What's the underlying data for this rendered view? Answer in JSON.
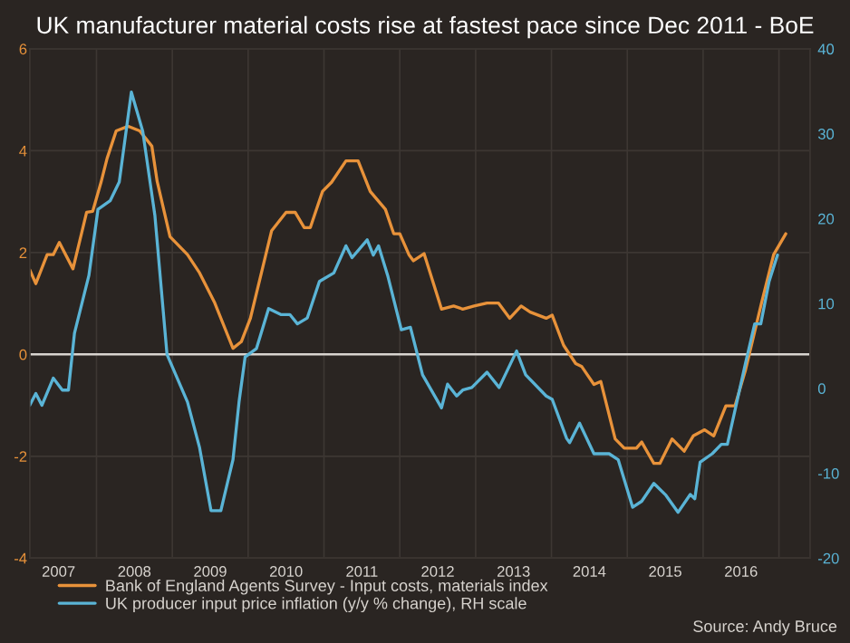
{
  "chart_data": {
    "type": "line",
    "title": "UK manufacturer material costs rise at fastest pace since Dec 2011 - BoE",
    "series": [
      {
        "name": "Bank of England Agents Survey - Input costs, materials index",
        "color": "#e8923a",
        "x": [
          2007.12,
          2007.2,
          2007.35,
          2007.43,
          2007.51,
          2007.69,
          2007.87,
          2007.95,
          2008.06,
          2008.14,
          2008.26,
          2008.42,
          2008.57,
          2008.73,
          2008.8,
          2008.97,
          2009.2,
          2009.36,
          2009.56,
          2009.8,
          2009.91,
          2010.03,
          2010.31,
          2010.5,
          2010.62,
          2010.74,
          2010.82,
          2010.98,
          2011.1,
          2011.29,
          2011.45,
          2011.61,
          2011.81,
          2011.92,
          2012.0,
          2012.12,
          2012.18,
          2012.32,
          2012.55,
          2012.71,
          2012.83,
          2012.98,
          2013.15,
          2013.3,
          2013.45,
          2013.6,
          2013.72,
          2013.93,
          2014.01,
          2014.16,
          2014.32,
          2014.4,
          2014.56,
          2014.65,
          2014.84,
          2014.96,
          2015.12,
          2015.19,
          2015.35,
          2015.43,
          2015.59,
          2015.75,
          2015.87,
          2016.02,
          2016.14,
          2016.3,
          2016.42,
          2016.56,
          2016.77,
          2016.93,
          2017.09
        ],
        "values": [
          1.66,
          1.39,
          1.96,
          1.96,
          2.2,
          1.68,
          2.79,
          2.81,
          3.38,
          3.85,
          4.39,
          4.48,
          4.39,
          4.09,
          3.4,
          2.31,
          1.96,
          1.6,
          1.01,
          0.12,
          0.25,
          0.71,
          2.43,
          2.79,
          2.79,
          2.49,
          2.49,
          3.2,
          3.38,
          3.8,
          3.8,
          3.2,
          2.85,
          2.37,
          2.37,
          1.96,
          1.84,
          1.98,
          0.89,
          0.95,
          0.89,
          0.95,
          1.01,
          1.01,
          0.71,
          0.95,
          0.83,
          0.71,
          0.77,
          0.18,
          -0.18,
          -0.24,
          -0.59,
          -0.53,
          -1.66,
          -1.84,
          -1.84,
          -1.72,
          -2.14,
          -2.14,
          -1.66,
          -1.9,
          -1.6,
          -1.48,
          -1.6,
          -1.01,
          -1.01,
          -0.3,
          1.01,
          1.96,
          2.37
        ]
      },
      {
        "name": "UK producer input price inflation (y/y % change), RH scale",
        "color": "#5ab4d6",
        "axis": "y2",
        "x": [
          2007.12,
          2007.2,
          2007.28,
          2007.43,
          2007.55,
          2007.63,
          2007.71,
          2007.9,
          2008.02,
          2008.18,
          2008.3,
          2008.46,
          2008.61,
          2008.77,
          2008.93,
          2009.2,
          2009.36,
          2009.51,
          2009.64,
          2009.8,
          2009.88,
          2009.96,
          2010.11,
          2010.27,
          2010.43,
          2010.55,
          2010.65,
          2010.78,
          2010.94,
          2011.13,
          2011.29,
          2011.37,
          2011.57,
          2011.65,
          2011.72,
          2011.84,
          2012.02,
          2012.14,
          2012.3,
          2012.55,
          2012.63,
          2012.75,
          2012.83,
          2012.95,
          2013.15,
          2013.31,
          2013.54,
          2013.66,
          2013.93,
          2014.01,
          2014.2,
          2014.24,
          2014.37,
          2014.56,
          2014.76,
          2014.88,
          2015.07,
          2015.19,
          2015.35,
          2015.51,
          2015.67,
          2015.83,
          2015.89,
          2015.96,
          2016.12,
          2016.24,
          2016.32,
          2016.56,
          2016.68,
          2016.76,
          2016.87,
          2016.98
        ],
        "values": [
          -2,
          -0.6,
          -2,
          1.2,
          -0.2,
          -0.2,
          6.5,
          13.3,
          21.1,
          22.1,
          24.3,
          34.9,
          30.3,
          20.4,
          4.0,
          -1.6,
          -7,
          -14.4,
          -14.4,
          -8.4,
          -1.6,
          3.7,
          4.7,
          9.4,
          8.7,
          8.7,
          7.6,
          8.3,
          12.6,
          13.6,
          16.8,
          15.4,
          17.5,
          15.7,
          16.8,
          13.3,
          6.9,
          7.2,
          1.6,
          -2.3,
          0.5,
          -0.9,
          -0.2,
          0.1,
          1.9,
          0.1,
          4.4,
          1.6,
          -0.9,
          -1.3,
          -5.9,
          -6.4,
          -4.1,
          -7.7,
          -7.7,
          -8.4,
          -14.0,
          -13.3,
          -11.2,
          -12.6,
          -14.6,
          -12.5,
          -13.0,
          -8.7,
          -7.7,
          -6.6,
          -6.6,
          3.0,
          7.6,
          7.6,
          12.6,
          15.7
        ]
      }
    ],
    "xlim": [
      2007.12,
      2017.41
    ],
    "xticks": [
      {
        "value": 2007.5,
        "label": "2007"
      },
      {
        "value": 2008,
        "label": null
      },
      {
        "value": 2008.5,
        "label": "2008"
      },
      {
        "value": 2009,
        "label": null
      },
      {
        "value": 2009.5,
        "label": "2009"
      },
      {
        "value": 2010,
        "label": null
      },
      {
        "value": 2010.5,
        "label": "2010"
      },
      {
        "value": 2011,
        "label": null
      },
      {
        "value": 2011.5,
        "label": "2011"
      },
      {
        "value": 2012,
        "label": null
      },
      {
        "value": 2012.5,
        "label": "2012"
      },
      {
        "value": 2013,
        "label": null
      },
      {
        "value": 2013.5,
        "label": "2013"
      },
      {
        "value": 2014,
        "label": null
      },
      {
        "value": 2014.5,
        "label": "2014"
      },
      {
        "value": 2015,
        "label": null
      },
      {
        "value": 2015.5,
        "label": "2015"
      },
      {
        "value": 2016,
        "label": null
      },
      {
        "value": 2016.5,
        "label": "2016"
      },
      {
        "value": 2017,
        "label": null
      }
    ],
    "ylim": [
      -4,
      6
    ],
    "yticks": [
      -4,
      -2,
      0,
      2,
      4,
      6
    ],
    "y2lim": [
      -20,
      40
    ],
    "y2ticks": [
      -20,
      -10,
      0,
      10,
      20,
      30,
      40
    ],
    "ref_lines": [
      {
        "axis": "y",
        "value": 0,
        "color": "#d8d4cf"
      }
    ],
    "grid": true,
    "legend": "bottom",
    "annotations": [
      "Source: Andy Bruce"
    ]
  }
}
